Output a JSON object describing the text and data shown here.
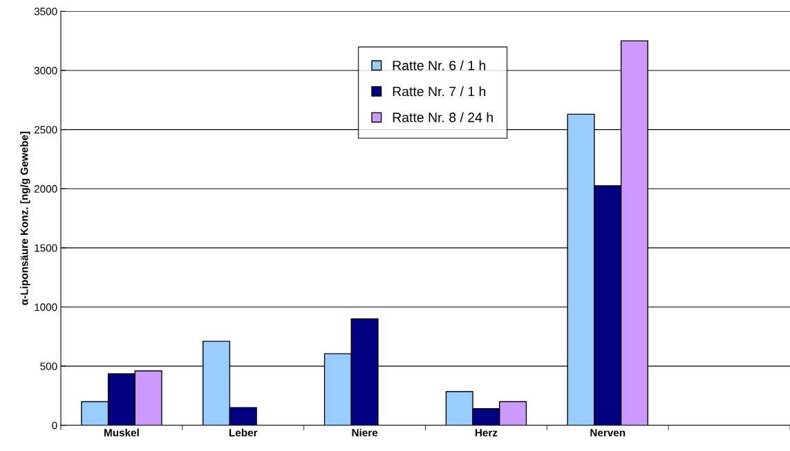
{
  "chart_data": {
    "type": "bar",
    "ylabel": "α-Liponsäure Konz. [ng/g Gewebe]",
    "categories": [
      "Muskel",
      "Leber",
      "Niere",
      "Herz",
      "Nerven",
      null
    ],
    "series": [
      {
        "name": "Ratte Nr. 6 / 1 h",
        "color": "#99ccff",
        "values": [
          200,
          710,
          605,
          285,
          2630,
          null
        ]
      },
      {
        "name": "Ratte Nr. 7 / 1 h",
        "color": "#000080",
        "values": [
          435,
          150,
          900,
          140,
          2025,
          null
        ]
      },
      {
        "name": "Ratte Nr. 8 / 24 h",
        "color": "#cc99ff",
        "values": [
          460,
          null,
          null,
          200,
          3250,
          null
        ]
      }
    ],
    "ylim": [
      0,
      3500
    ],
    "yticks": [
      0,
      500,
      1000,
      1500,
      2000,
      2500,
      3000,
      3500
    ],
    "grid": "y",
    "legend": "top"
  }
}
